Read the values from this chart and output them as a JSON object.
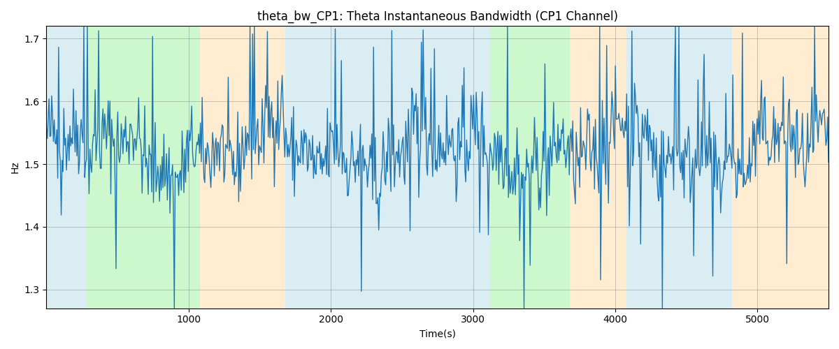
{
  "title": "theta_bw_CP1: Theta Instantaneous Bandwidth (CP1 Channel)",
  "xlabel": "Time(s)",
  "ylabel": "Hz",
  "xlim": [
    0,
    5500
  ],
  "ylim": [
    1.27,
    1.72
  ],
  "yticks": [
    1.3,
    1.4,
    1.5,
    1.6,
    1.7
  ],
  "xticks": [
    1000,
    2000,
    3000,
    4000,
    5000
  ],
  "line_color": "#1f77b4",
  "line_width": 1.0,
  "figsize": [
    12,
    5
  ],
  "dpi": 100,
  "bg_regions": [
    {
      "xstart": 0,
      "xend": 280,
      "color": "#add8e6",
      "alpha": 0.45
    },
    {
      "xstart": 280,
      "xend": 1080,
      "color": "#90ee90",
      "alpha": 0.45
    },
    {
      "xstart": 1080,
      "xend": 1680,
      "color": "#ffd59a",
      "alpha": 0.45
    },
    {
      "xstart": 1680,
      "xend": 3020,
      "color": "#add8e6",
      "alpha": 0.45
    },
    {
      "xstart": 3020,
      "xend": 3120,
      "color": "#add8e6",
      "alpha": 0.45
    },
    {
      "xstart": 3120,
      "xend": 3680,
      "color": "#90ee90",
      "alpha": 0.45
    },
    {
      "xstart": 3680,
      "xend": 4080,
      "color": "#ffd59a",
      "alpha": 0.45
    },
    {
      "xstart": 4080,
      "xend": 4820,
      "color": "#add8e6",
      "alpha": 0.45
    },
    {
      "xstart": 4820,
      "xend": 5500,
      "color": "#ffd59a",
      "alpha": 0.45
    }
  ],
  "seed": 42,
  "num_points": 900,
  "base_hz": 1.52,
  "noise_std": 0.035,
  "spike_count": 55,
  "spike_magnitude_min": 0.12,
  "spike_magnitude_max": 0.22
}
